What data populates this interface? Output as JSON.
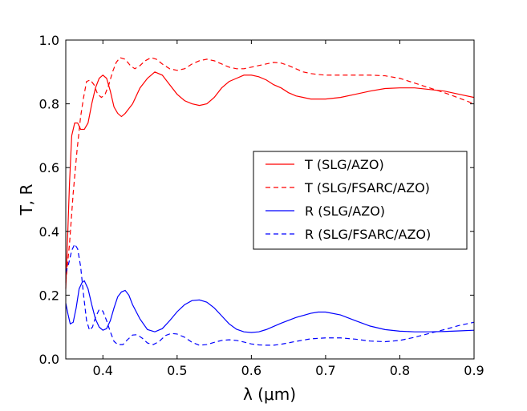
{
  "chart_data": {
    "type": "line",
    "title": "",
    "xlabel": "λ (μm)",
    "ylabel": "T, R",
    "xlim": [
      0.35,
      0.9
    ],
    "ylim": [
      0.0,
      1.0
    ],
    "x_ticks": [
      "0.4",
      "0.5",
      "0.6",
      "0.7",
      "0.8",
      "0.9"
    ],
    "y_ticks": [
      "0.0",
      "0.2",
      "0.4",
      "0.6",
      "0.8",
      "1.0"
    ],
    "grid": false,
    "legend_position": "center-right",
    "series": [
      {
        "name": "T (SLG/AZO)",
        "color": "#ff0000",
        "dash": "solid",
        "points": [
          [
            0.35,
            0.22
          ],
          [
            0.352,
            0.35
          ],
          [
            0.355,
            0.55
          ],
          [
            0.358,
            0.7
          ],
          [
            0.362,
            0.74
          ],
          [
            0.366,
            0.74
          ],
          [
            0.37,
            0.72
          ],
          [
            0.375,
            0.72
          ],
          [
            0.38,
            0.74
          ],
          [
            0.385,
            0.8
          ],
          [
            0.39,
            0.85
          ],
          [
            0.395,
            0.88
          ],
          [
            0.4,
            0.89
          ],
          [
            0.405,
            0.88
          ],
          [
            0.41,
            0.84
          ],
          [
            0.415,
            0.79
          ],
          [
            0.42,
            0.77
          ],
          [
            0.425,
            0.76
          ],
          [
            0.43,
            0.77
          ],
          [
            0.44,
            0.8
          ],
          [
            0.45,
            0.85
          ],
          [
            0.46,
            0.88
          ],
          [
            0.47,
            0.9
          ],
          [
            0.48,
            0.89
          ],
          [
            0.49,
            0.86
          ],
          [
            0.5,
            0.83
          ],
          [
            0.51,
            0.81
          ],
          [
            0.52,
            0.8
          ],
          [
            0.53,
            0.795
          ],
          [
            0.54,
            0.8
          ],
          [
            0.55,
            0.82
          ],
          [
            0.56,
            0.85
          ],
          [
            0.57,
            0.87
          ],
          [
            0.58,
            0.88
          ],
          [
            0.59,
            0.89
          ],
          [
            0.6,
            0.89
          ],
          [
            0.61,
            0.885
          ],
          [
            0.62,
            0.875
          ],
          [
            0.63,
            0.86
          ],
          [
            0.64,
            0.85
          ],
          [
            0.65,
            0.835
          ],
          [
            0.66,
            0.825
          ],
          [
            0.67,
            0.82
          ],
          [
            0.68,
            0.815
          ],
          [
            0.69,
            0.815
          ],
          [
            0.7,
            0.815
          ],
          [
            0.72,
            0.82
          ],
          [
            0.74,
            0.83
          ],
          [
            0.76,
            0.84
          ],
          [
            0.78,
            0.848
          ],
          [
            0.8,
            0.85
          ],
          [
            0.82,
            0.85
          ],
          [
            0.84,
            0.845
          ],
          [
            0.86,
            0.84
          ],
          [
            0.88,
            0.83
          ],
          [
            0.9,
            0.82
          ]
        ]
      },
      {
        "name": "T (SLG/FSARC/AZO)",
        "color": "#ff0000",
        "dash": "dashed",
        "points": [
          [
            0.35,
            0.24
          ],
          [
            0.355,
            0.36
          ],
          [
            0.36,
            0.52
          ],
          [
            0.365,
            0.65
          ],
          [
            0.37,
            0.76
          ],
          [
            0.374,
            0.82
          ],
          [
            0.378,
            0.87
          ],
          [
            0.383,
            0.875
          ],
          [
            0.388,
            0.86
          ],
          [
            0.393,
            0.83
          ],
          [
            0.398,
            0.82
          ],
          [
            0.403,
            0.83
          ],
          [
            0.408,
            0.86
          ],
          [
            0.413,
            0.9
          ],
          [
            0.418,
            0.93
          ],
          [
            0.423,
            0.945
          ],
          [
            0.43,
            0.94
          ],
          [
            0.437,
            0.92
          ],
          [
            0.443,
            0.91
          ],
          [
            0.45,
            0.92
          ],
          [
            0.457,
            0.935
          ],
          [
            0.465,
            0.945
          ],
          [
            0.472,
            0.94
          ],
          [
            0.48,
            0.925
          ],
          [
            0.49,
            0.91
          ],
          [
            0.5,
            0.905
          ],
          [
            0.51,
            0.91
          ],
          [
            0.52,
            0.925
          ],
          [
            0.53,
            0.935
          ],
          [
            0.54,
            0.94
          ],
          [
            0.55,
            0.935
          ],
          [
            0.56,
            0.925
          ],
          [
            0.57,
            0.915
          ],
          [
            0.58,
            0.91
          ],
          [
            0.59,
            0.91
          ],
          [
            0.6,
            0.915
          ],
          [
            0.61,
            0.92
          ],
          [
            0.62,
            0.925
          ],
          [
            0.63,
            0.93
          ],
          [
            0.64,
            0.928
          ],
          [
            0.65,
            0.92
          ],
          [
            0.66,
            0.91
          ],
          [
            0.67,
            0.9
          ],
          [
            0.68,
            0.895
          ],
          [
            0.69,
            0.892
          ],
          [
            0.7,
            0.89
          ],
          [
            0.72,
            0.89
          ],
          [
            0.74,
            0.89
          ],
          [
            0.76,
            0.89
          ],
          [
            0.78,
            0.888
          ],
          [
            0.8,
            0.88
          ],
          [
            0.82,
            0.865
          ],
          [
            0.84,
            0.85
          ],
          [
            0.86,
            0.835
          ],
          [
            0.88,
            0.818
          ],
          [
            0.9,
            0.8
          ]
        ]
      },
      {
        "name": "R (SLG/AZO)",
        "color": "#0000ff",
        "dash": "solid",
        "points": [
          [
            0.35,
            0.175
          ],
          [
            0.353,
            0.14
          ],
          [
            0.356,
            0.11
          ],
          [
            0.36,
            0.115
          ],
          [
            0.364,
            0.16
          ],
          [
            0.368,
            0.22
          ],
          [
            0.372,
            0.24
          ],
          [
            0.375,
            0.245
          ],
          [
            0.38,
            0.22
          ],
          [
            0.385,
            0.17
          ],
          [
            0.39,
            0.125
          ],
          [
            0.395,
            0.1
          ],
          [
            0.4,
            0.09
          ],
          [
            0.405,
            0.095
          ],
          [
            0.41,
            0.12
          ],
          [
            0.415,
            0.16
          ],
          [
            0.42,
            0.195
          ],
          [
            0.425,
            0.21
          ],
          [
            0.43,
            0.215
          ],
          [
            0.435,
            0.2
          ],
          [
            0.44,
            0.17
          ],
          [
            0.45,
            0.125
          ],
          [
            0.46,
            0.092
          ],
          [
            0.47,
            0.085
          ],
          [
            0.48,
            0.095
          ],
          [
            0.49,
            0.12
          ],
          [
            0.5,
            0.148
          ],
          [
            0.51,
            0.17
          ],
          [
            0.52,
            0.183
          ],
          [
            0.53,
            0.185
          ],
          [
            0.54,
            0.178
          ],
          [
            0.55,
            0.16
          ],
          [
            0.56,
            0.135
          ],
          [
            0.57,
            0.11
          ],
          [
            0.58,
            0.093
          ],
          [
            0.59,
            0.085
          ],
          [
            0.6,
            0.083
          ],
          [
            0.61,
            0.085
          ],
          [
            0.62,
            0.092
          ],
          [
            0.64,
            0.112
          ],
          [
            0.66,
            0.13
          ],
          [
            0.68,
            0.143
          ],
          [
            0.69,
            0.147
          ],
          [
            0.7,
            0.147
          ],
          [
            0.72,
            0.138
          ],
          [
            0.74,
            0.12
          ],
          [
            0.76,
            0.103
          ],
          [
            0.78,
            0.092
          ],
          [
            0.8,
            0.087
          ],
          [
            0.82,
            0.085
          ],
          [
            0.84,
            0.085
          ],
          [
            0.86,
            0.086
          ],
          [
            0.88,
            0.088
          ],
          [
            0.9,
            0.09
          ]
        ]
      },
      {
        "name": "R (SLG/FSARC/AZO)",
        "color": "#0000ff",
        "dash": "dashed",
        "points": [
          [
            0.35,
            0.27
          ],
          [
            0.354,
            0.3
          ],
          [
            0.358,
            0.34
          ],
          [
            0.362,
            0.36
          ],
          [
            0.366,
            0.345
          ],
          [
            0.37,
            0.29
          ],
          [
            0.374,
            0.2
          ],
          [
            0.378,
            0.12
          ],
          [
            0.382,
            0.09
          ],
          [
            0.386,
            0.1
          ],
          [
            0.39,
            0.13
          ],
          [
            0.395,
            0.155
          ],
          [
            0.4,
            0.15
          ],
          [
            0.405,
            0.12
          ],
          [
            0.41,
            0.085
          ],
          [
            0.415,
            0.055
          ],
          [
            0.42,
            0.045
          ],
          [
            0.427,
            0.045
          ],
          [
            0.433,
            0.06
          ],
          [
            0.44,
            0.075
          ],
          [
            0.446,
            0.076
          ],
          [
            0.453,
            0.065
          ],
          [
            0.46,
            0.05
          ],
          [
            0.468,
            0.045
          ],
          [
            0.476,
            0.055
          ],
          [
            0.484,
            0.073
          ],
          [
            0.492,
            0.08
          ],
          [
            0.5,
            0.078
          ],
          [
            0.51,
            0.068
          ],
          [
            0.52,
            0.052
          ],
          [
            0.53,
            0.043
          ],
          [
            0.54,
            0.045
          ],
          [
            0.55,
            0.052
          ],
          [
            0.56,
            0.058
          ],
          [
            0.57,
            0.06
          ],
          [
            0.58,
            0.058
          ],
          [
            0.59,
            0.053
          ],
          [
            0.6,
            0.047
          ],
          [
            0.61,
            0.044
          ],
          [
            0.62,
            0.043
          ],
          [
            0.63,
            0.043
          ],
          [
            0.64,
            0.046
          ],
          [
            0.66,
            0.055
          ],
          [
            0.68,
            0.063
          ],
          [
            0.7,
            0.066
          ],
          [
            0.72,
            0.066
          ],
          [
            0.74,
            0.062
          ],
          [
            0.76,
            0.056
          ],
          [
            0.78,
            0.054
          ],
          [
            0.8,
            0.058
          ],
          [
            0.82,
            0.068
          ],
          [
            0.84,
            0.08
          ],
          [
            0.86,
            0.092
          ],
          [
            0.88,
            0.105
          ],
          [
            0.9,
            0.115
          ]
        ]
      }
    ]
  }
}
